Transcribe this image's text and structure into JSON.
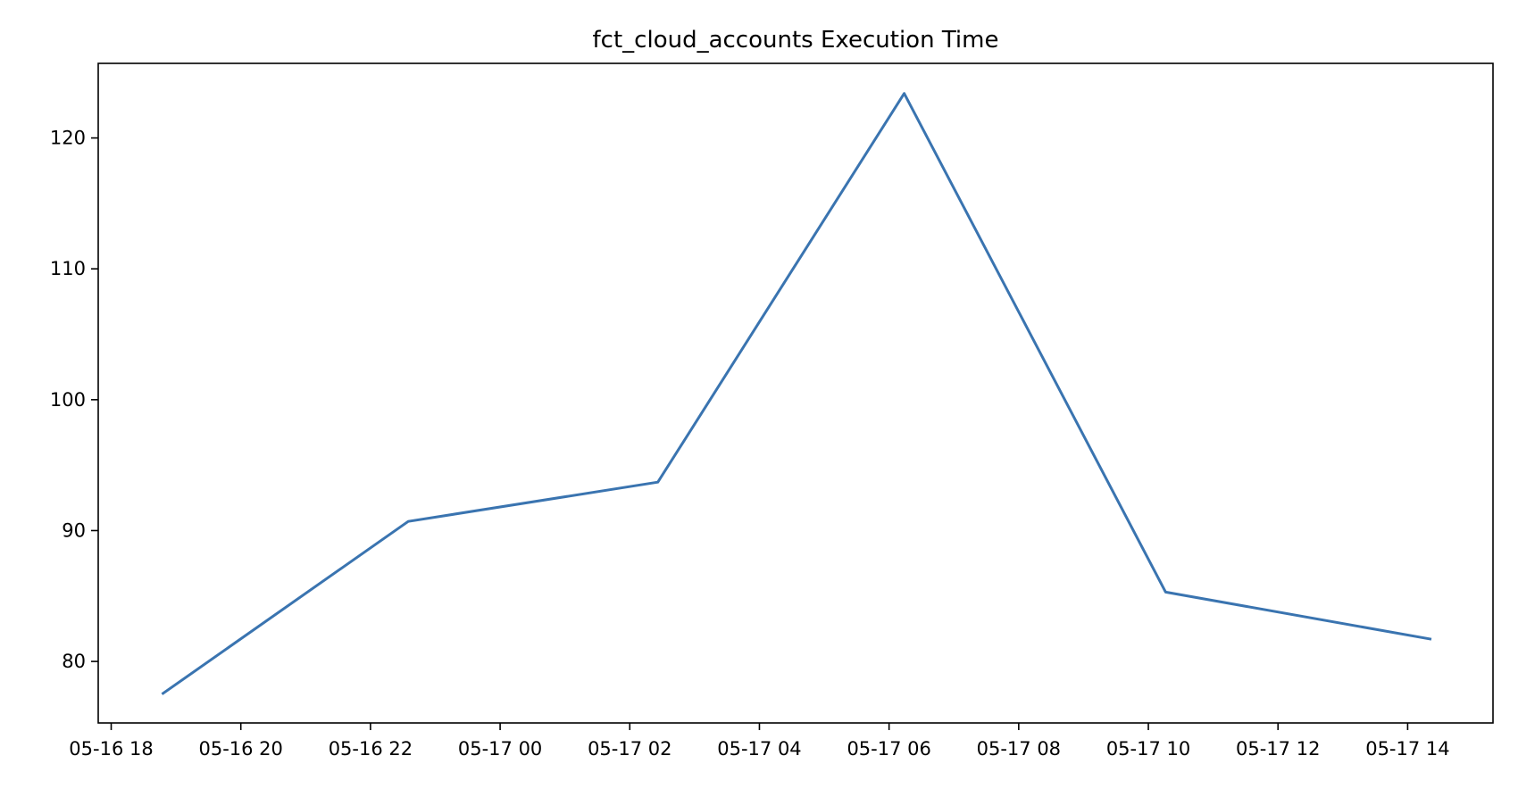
{
  "chart_data": {
    "type": "line",
    "title": "fct_cloud_accounts Execution Time",
    "xlabel": "",
    "ylabel": "",
    "x_type": "datetime",
    "xlim": [
      "05-16 17:48",
      "05-17 15:19"
    ],
    "ylim": [
      75.3,
      125.7
    ],
    "x_ticks": [
      "05-16 18",
      "05-16 20",
      "05-16 22",
      "05-17 00",
      "05-17 02",
      "05-17 04",
      "05-17 06",
      "05-17 08",
      "05-17 10",
      "05-17 12",
      "05-17 14"
    ],
    "y_ticks": [
      80,
      90,
      100,
      110,
      120
    ],
    "grid": false,
    "legend": "none",
    "series": [
      {
        "color": "#3a74b0",
        "points": [
          {
            "x": "05-16 18:47",
            "y": 77.5
          },
          {
            "x": "05-16 22:35",
            "y": 90.7
          },
          {
            "x": "05-17 02:26",
            "y": 93.7
          },
          {
            "x": "05-17 06:14",
            "y": 123.4
          },
          {
            "x": "05-17 10:16",
            "y": 85.3
          },
          {
            "x": "05-17 14:22",
            "y": 81.7
          }
        ]
      }
    ]
  }
}
